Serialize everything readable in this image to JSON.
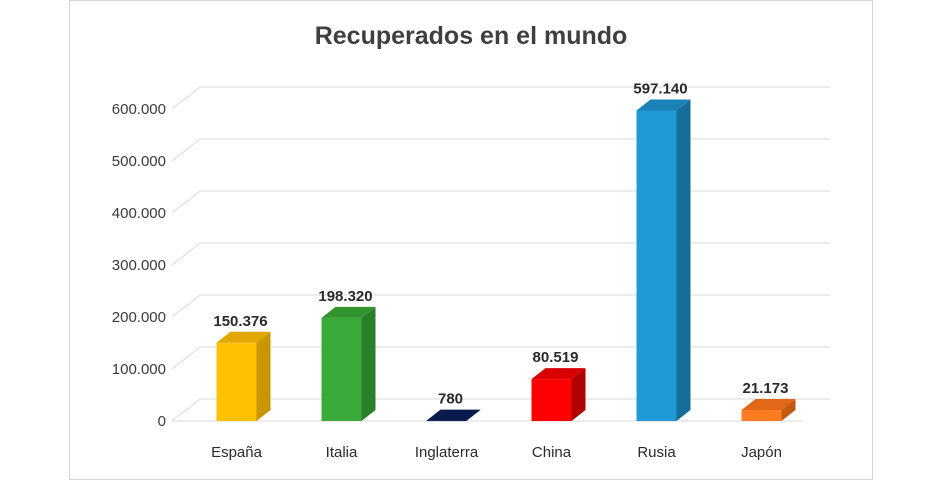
{
  "chart_data": {
    "type": "bar",
    "title": "Recuperados en el mundo",
    "categories": [
      "España",
      "Italia",
      "Inglaterra",
      "China",
      "Rusia",
      "Japón"
    ],
    "values": [
      150376,
      198320,
      780,
      80519,
      597140,
      21173
    ],
    "data_labels": [
      "150.376",
      "198.320",
      "780",
      "80.519",
      "597.140",
      "21.173"
    ],
    "yticks": [
      0,
      100000,
      200000,
      300000,
      400000,
      500000,
      600000
    ],
    "ytick_labels": [
      "0",
      "100.000",
      "200.000",
      "300.000",
      "400.000",
      "500.000",
      "600.000"
    ],
    "ylim": [
      0,
      600000
    ],
    "grid": true,
    "legend": "none",
    "colors": [
      "#ffc000",
      "#3aab3a",
      "#0c1f5e",
      "#ff0000",
      "#1f9ad6",
      "#ff7c20"
    ],
    "side_colors": [
      "#c79600",
      "#2a7f2a",
      "#061238",
      "#b00000",
      "#156d9a",
      "#c25a10"
    ],
    "top_colors": [
      "#e0a800",
      "#30932e",
      "#0a1a4c",
      "#d80000",
      "#1a82b6",
      "#e06818"
    ]
  }
}
